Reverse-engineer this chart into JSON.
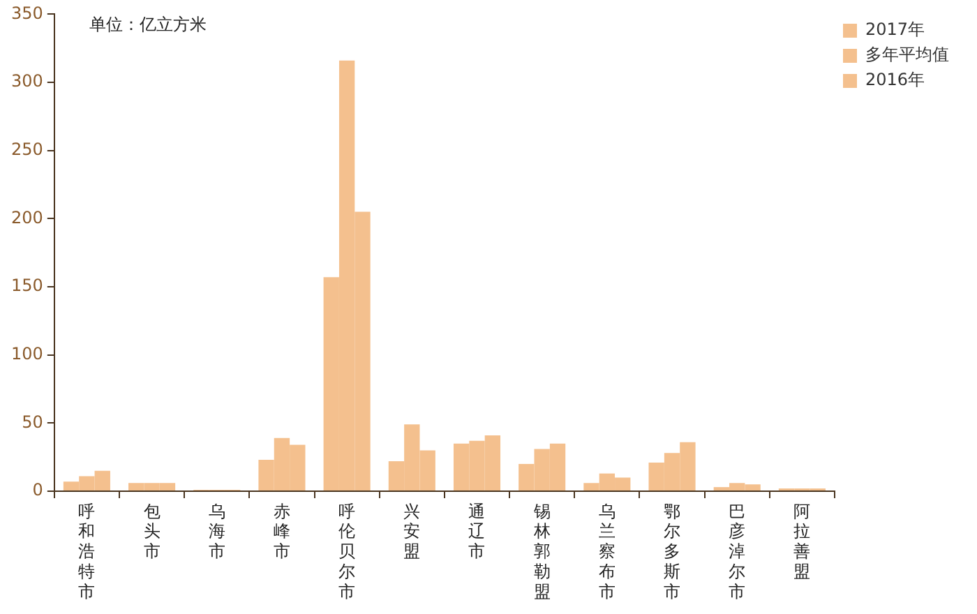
{
  "chart_data": {
    "type": "bar",
    "annotations": [
      "单位：亿立方米"
    ],
    "categories": [
      "呼和浩特市",
      "包头市",
      "乌海市",
      "赤峰市",
      "呼伦贝尔市",
      "兴安盟",
      "通辽市",
      "锡林郭勒盟",
      "乌兰察布市",
      "鄂尔多斯市",
      "巴彦淖尔市",
      "阿拉善盟"
    ],
    "series": [
      {
        "name": "2017年",
        "color": "#f4c08e",
        "values": [
          7,
          6,
          1,
          23,
          157,
          22,
          35,
          20,
          6,
          21,
          3,
          2
        ]
      },
      {
        "name": "多年平均值",
        "color": "#f4c08e",
        "values": [
          11,
          6,
          1,
          39,
          316,
          49,
          37,
          31,
          13,
          28,
          6,
          2
        ]
      },
      {
        "name": "2016年",
        "color": "#f4c08e",
        "values": [
          15,
          6,
          1,
          34,
          205,
          30,
          41,
          35,
          10,
          36,
          5,
          2
        ]
      }
    ],
    "ylim": [
      0,
      350
    ],
    "yticks": [
      0,
      50,
      100,
      150,
      200,
      250,
      300,
      350
    ],
    "grid": false,
    "legend": "top right"
  }
}
